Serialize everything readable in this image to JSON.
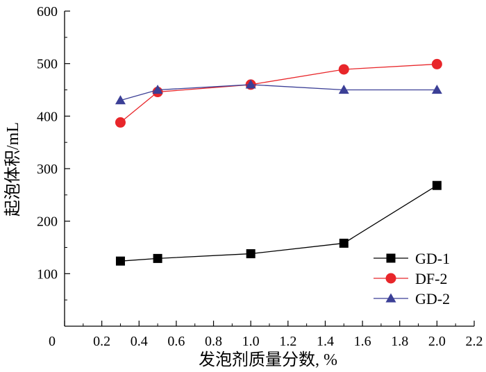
{
  "chart_data": {
    "type": "line",
    "title": "",
    "xlabel": "发泡剂质量分数, %",
    "ylabel": "起泡体积/mL",
    "xlim": [
      0,
      2.2
    ],
    "ylim": [
      0,
      600
    ],
    "x_ticks": [
      "0",
      "0.2",
      "0.4",
      "0.6",
      "0.8",
      "1.0",
      "1.2",
      "1.4",
      "1.6",
      "1.8",
      "2.0",
      "2.2"
    ],
    "y_ticks": [
      "100",
      "200",
      "300",
      "400",
      "500",
      "600"
    ],
    "grid": false,
    "legend_position": "bottom-right",
    "series": [
      {
        "name": "GD-1",
        "color": "#000000",
        "marker": "square",
        "points": [
          [
            0.3,
            124
          ],
          [
            0.5,
            129
          ],
          [
            1.0,
            138
          ],
          [
            1.5,
            158
          ],
          [
            2.0,
            268
          ]
        ]
      },
      {
        "name": "DF-2",
        "color": "#e8262a",
        "marker": "circle",
        "points": [
          [
            0.3,
            388
          ],
          [
            0.5,
            446
          ],
          [
            1.0,
            460
          ],
          [
            1.5,
            489
          ],
          [
            2.0,
            499
          ]
        ]
      },
      {
        "name": "GD-2",
        "color": "#3b3f96",
        "marker": "triangle",
        "points": [
          [
            0.3,
            430
          ],
          [
            0.5,
            450
          ],
          [
            1.0,
            460
          ],
          [
            1.5,
            450
          ],
          [
            2.0,
            450
          ]
        ]
      }
    ]
  }
}
